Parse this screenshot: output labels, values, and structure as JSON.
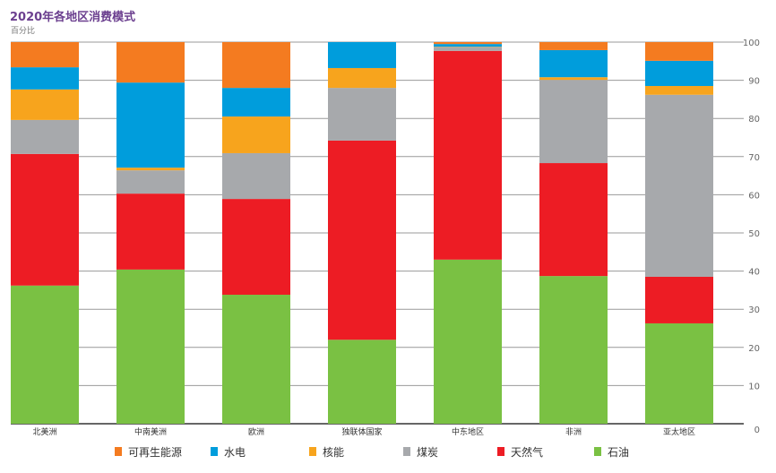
{
  "chart_data": {
    "type": "bar",
    "stacked": true,
    "title": "2020年各地区消费模式",
    "subtitle": "百分比",
    "categories": [
      "北美洲",
      "中南美洲",
      "欧洲",
      "独联体国家",
      "中东地区",
      "非洲",
      "亚太地区"
    ],
    "series": [
      {
        "name": "石油",
        "color": "#7ac143",
        "values": [
          36.2,
          40.4,
          33.8,
          22.0,
          43.0,
          38.7,
          26.3
        ]
      },
      {
        "name": "天然气",
        "color": "#ed1c24",
        "values": [
          34.5,
          19.9,
          25.1,
          52.2,
          54.7,
          29.6,
          12.2
        ]
      },
      {
        "name": "煤炭",
        "color": "#a7a9ac",
        "values": [
          8.9,
          6.1,
          12.0,
          13.8,
          1.0,
          21.8,
          47.7
        ]
      },
      {
        "name": "核能",
        "color": "#f7a41d",
        "values": [
          8.0,
          0.7,
          9.6,
          5.2,
          0.1,
          0.7,
          2.3
        ]
      },
      {
        "name": "水电",
        "color": "#009ddc",
        "values": [
          5.8,
          22.3,
          7.5,
          6.8,
          0.7,
          7.1,
          6.6
        ]
      },
      {
        "name": "可再生能源",
        "color": "#f47b20",
        "values": [
          6.6,
          10.6,
          12.0,
          0.0,
          0.5,
          2.1,
          4.9
        ]
      }
    ],
    "legend_order": [
      "可再生能源",
      "水电",
      "核能",
      "煤炭",
      "天然气",
      "石油"
    ],
    "ylim": [
      0,
      100
    ],
    "yticks": [
      0,
      10,
      20,
      30,
      40,
      50,
      60,
      70,
      80,
      90,
      100
    ],
    "y_axis_side": "right",
    "grid": true,
    "legend": "bottom"
  }
}
